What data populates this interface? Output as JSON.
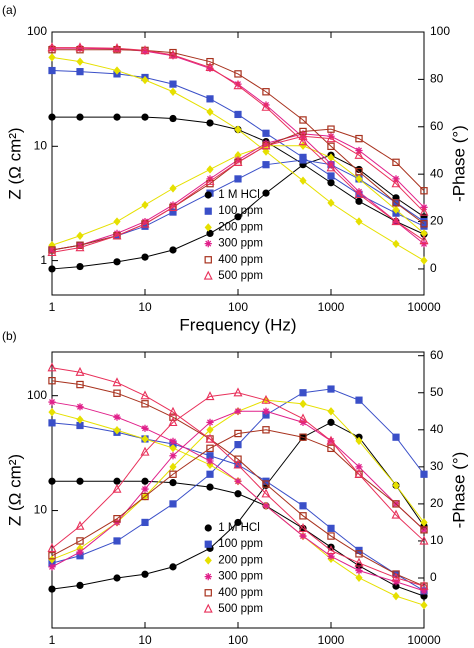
{
  "chart_data": [
    {
      "type": "line",
      "panel_label": "(a)",
      "xlabel": "Frequency (Hz)",
      "ylabel": "Z (Ω cm²)",
      "y2label": "-Phase (°)",
      "xlog": true,
      "ylog": true,
      "legend": "lower center",
      "x": [
        1,
        2,
        5,
        10,
        20,
        50,
        100,
        200,
        500,
        1000,
        2000,
        5000,
        10000
      ],
      "xlim": [
        1,
        10000
      ],
      "xticks": [
        1,
        10,
        100,
        1000,
        10000
      ],
      "ylim": [
        0.5,
        100
      ],
      "yticks": [
        1,
        10,
        100
      ],
      "y2lim": [
        -11,
        100
      ],
      "y2ticks": [
        0,
        20,
        40,
        60,
        80,
        100
      ],
      "series": [
        {
          "name": "1 M HCl",
          "color": "#000000",
          "marker": "circle",
          "values": [
            18,
            18,
            18,
            18,
            17.5,
            16,
            14,
            11,
            7,
            4.8,
            3.3,
            2.2,
            1.7
          ],
          "phase": [
            0,
            1,
            3,
            5,
            8,
            15,
            22,
            32,
            44,
            48,
            42,
            30,
            22
          ]
        },
        {
          "name": "100 ppm",
          "color": "#3a4fc8",
          "marker": "square",
          "values": [
            46,
            45,
            43,
            40,
            35,
            26,
            19,
            13,
            8,
            5.5,
            3.8,
            2.6,
            2
          ],
          "phase": [
            8,
            10,
            14,
            18,
            24,
            32,
            38,
            44,
            46,
            44,
            38,
            28,
            20
          ]
        },
        {
          "name": "200 ppm",
          "color": "#e6e000",
          "marker": "diamond",
          "values": [
            60,
            55,
            46,
            38,
            30,
            20,
            14,
            9,
            5,
            3.2,
            2.2,
            1.4,
            1
          ],
          "phase": [
            10,
            14,
            20,
            27,
            34,
            42,
            48,
            52,
            52,
            47,
            38,
            25,
            15
          ]
        },
        {
          "name": "300 ppm",
          "color": "#e0208a",
          "marker": "star",
          "values": [
            72,
            72,
            71,
            68,
            62,
            48,
            35,
            23,
            12,
            7,
            4,
            2.2,
            1.4
          ],
          "phase": [
            8,
            10,
            15,
            20,
            27,
            38,
            46,
            53,
            57,
            56,
            50,
            38,
            26
          ]
        },
        {
          "name": "400 ppm",
          "color": "#a8321e",
          "marker": "open-square",
          "values": [
            70,
            70,
            70,
            69,
            66,
            55,
            43,
            30,
            17,
            10,
            6,
            3.2,
            2.1
          ],
          "phase": [
            8,
            10,
            14,
            19,
            26,
            36,
            45,
            52,
            58,
            59,
            55,
            45,
            33
          ]
        },
        {
          "name": "500 ppm",
          "color": "#e8305a",
          "marker": "open-triangle",
          "values": [
            73,
            73,
            72,
            69,
            63,
            49,
            34,
            22,
            11,
            6.5,
            3.8,
            2.2,
            1.5
          ],
          "phase": [
            7,
            9,
            14,
            19,
            26,
            37,
            45,
            52,
            56,
            55,
            48,
            36,
            24
          ]
        }
      ]
    },
    {
      "type": "line",
      "panel_label": "(b)",
      "xlabel": "Frequency (Hz)",
      "ylabel": "Z (Ω cm²)",
      "y2label": "-Phase (°)",
      "xlog": true,
      "ylog": true,
      "legend": "lower center",
      "x": [
        1,
        2,
        5,
        10,
        20,
        50,
        100,
        200,
        500,
        1000,
        2000,
        5000,
        10000
      ],
      "xlim": [
        1,
        10000
      ],
      "xticks": [
        1,
        10,
        100,
        1000,
        10000
      ],
      "ylim": [
        0.95,
        240
      ],
      "yticks": [
        10,
        100
      ],
      "y2lim": [
        -13.5,
        61
      ],
      "y2ticks": [
        0,
        10,
        20,
        30,
        40,
        50,
        60
      ],
      "series": [
        {
          "name": "1 M HCl",
          "color": "#000000",
          "marker": "circle",
          "values": [
            18,
            18,
            18,
            18,
            17.5,
            16,
            14,
            11,
            7,
            4.8,
            3.3,
            2.2,
            1.8
          ],
          "phase": [
            -3,
            -2,
            0,
            1,
            3,
            8,
            15,
            25,
            38,
            42,
            38,
            25,
            14
          ]
        },
        {
          "name": "100 ppm",
          "color": "#3a4fc8",
          "marker": "square",
          "values": [
            58,
            55,
            48,
            42,
            38,
            30,
            25,
            18,
            11,
            7,
            4.5,
            2.8,
            2
          ],
          "phase": [
            4,
            6,
            10,
            15,
            20,
            28,
            36,
            44,
            50,
            51,
            48,
            38,
            28
          ]
        },
        {
          "name": "200 ppm",
          "color": "#e6e000",
          "marker": "diamond",
          "values": [
            72,
            62,
            50,
            42,
            35,
            25,
            18,
            11,
            6,
            3.8,
            2.6,
            1.8,
            1.5
          ],
          "phase": [
            5,
            8,
            15,
            22,
            30,
            40,
            45,
            48,
            47,
            45,
            37,
            25,
            15
          ]
        },
        {
          "name": "300 ppm",
          "color": "#e0208a",
          "marker": "star",
          "values": [
            88,
            80,
            65,
            52,
            40,
            27,
            18,
            11,
            6,
            4,
            3,
            2.4,
            2
          ],
          "phase": [
            3,
            7,
            15,
            24,
            33,
            42,
            45,
            45,
            42,
            37,
            30,
            20,
            13
          ]
        },
        {
          "name": "400 ppm",
          "color": "#a8321e",
          "marker": "open-square",
          "values": [
            135,
            125,
            105,
            85,
            65,
            42,
            28,
            17,
            9,
            6,
            4.2,
            2.8,
            2.2
          ],
          "phase": [
            6,
            10,
            16,
            22,
            28,
            35,
            39,
            40,
            38,
            35,
            28,
            20,
            13
          ]
        },
        {
          "name": "500 ppm",
          "color": "#e8305a",
          "marker": "open-triangle",
          "values": [
            175,
            160,
            130,
            100,
            72,
            42,
            25,
            14,
            7,
            4.5,
            3.5,
            2.6,
            2.2
          ],
          "phase": [
            8,
            14,
            24,
            34,
            42,
            49,
            50,
            48,
            43,
            37,
            28,
            17,
            10
          ]
        }
      ]
    }
  ]
}
